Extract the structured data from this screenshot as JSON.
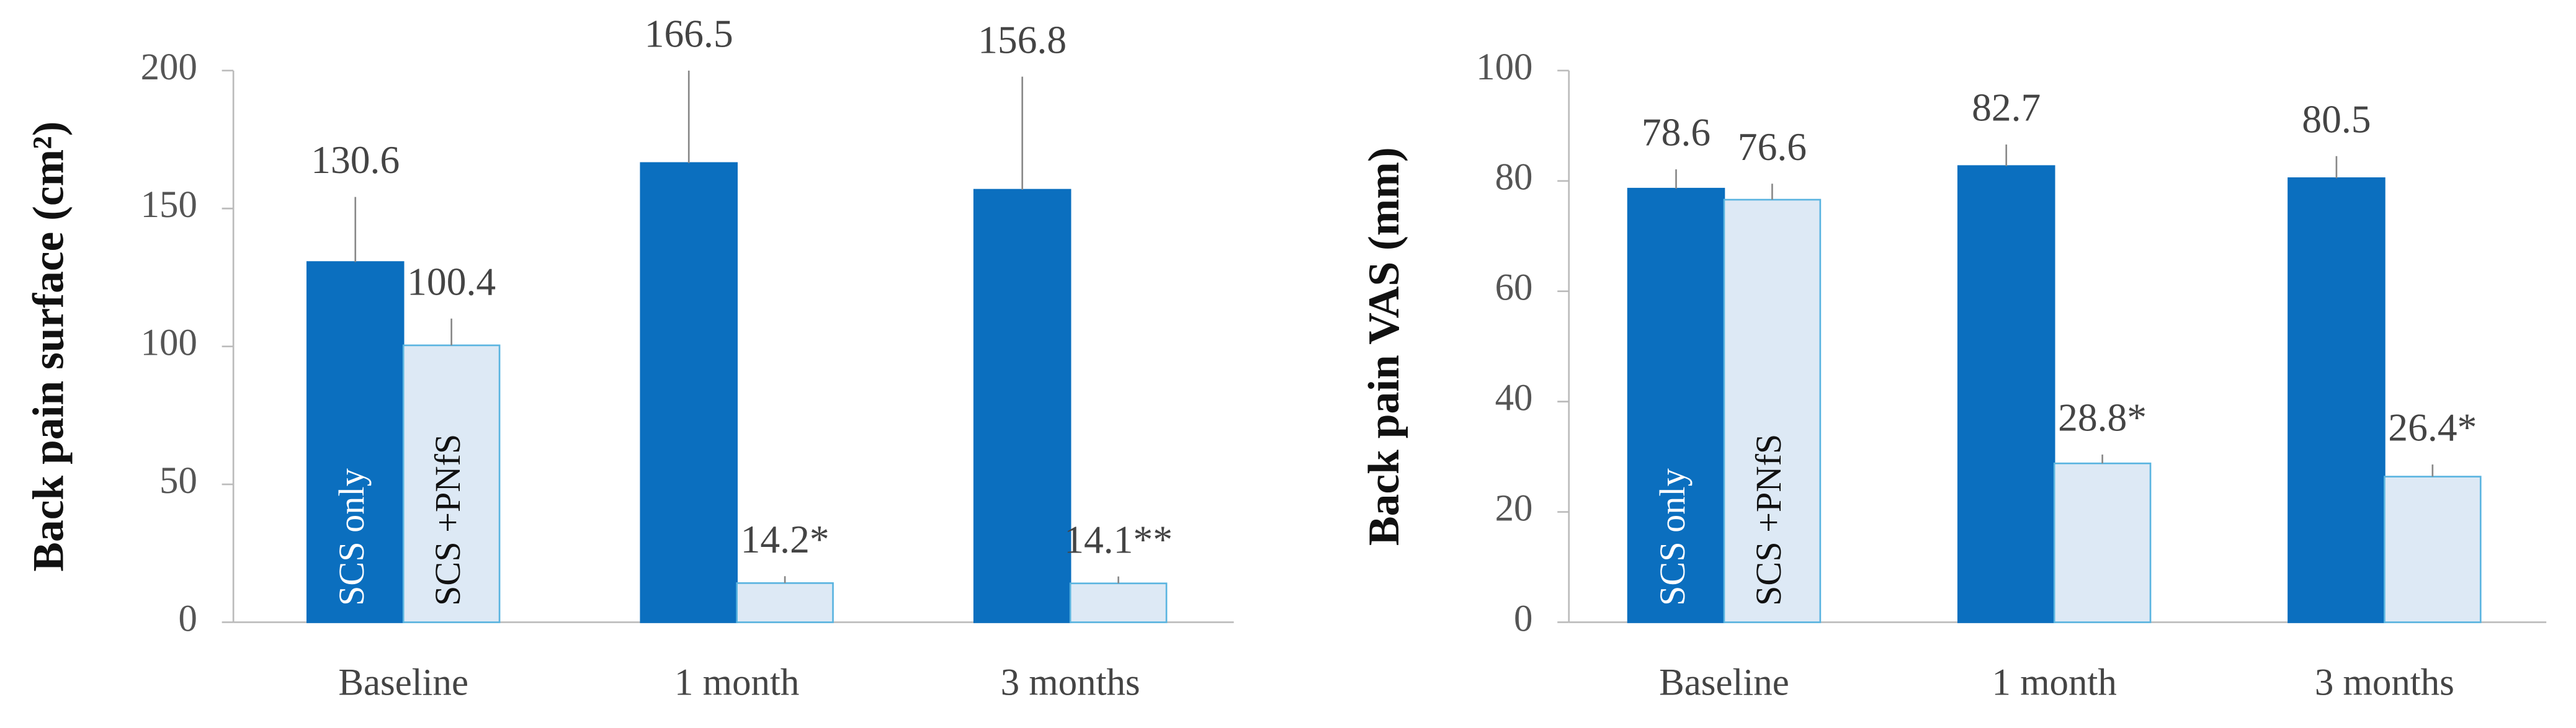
{
  "chart_data": [
    {
      "type": "bar",
      "y_label": "Back pain surface (cm²)",
      "categories": [
        "Baseline",
        "1 month",
        "3 months"
      ],
      "series": [
        {
          "name": "SCS only",
          "color": "#0b6fbf",
          "values": [
            130.6,
            166.5,
            156.8
          ],
          "errors": [
            23.6,
            33.5,
            41
          ]
        },
        {
          "name": "SCS +PNfS",
          "color": "#dde9f5",
          "values": [
            100.4,
            14.2,
            14.1
          ],
          "value_labels": [
            "100.4",
            "14.2*",
            "14.1**"
          ],
          "errors": [
            9.7,
            2.5,
            2.5
          ]
        }
      ],
      "ylim": [
        0,
        200
      ],
      "yticks": [
        0,
        50,
        100,
        150,
        200
      ]
    },
    {
      "type": "bar",
      "y_label": "Back pain VAS (mm)",
      "categories": [
        "Baseline",
        "1 month",
        "3 months"
      ],
      "series": [
        {
          "name": "SCS only",
          "color": "#0b6fbf",
          "values": [
            78.6,
            82.7,
            80.5
          ],
          "errors": [
            3.5,
            3.9,
            4
          ]
        },
        {
          "name": "SCS +PNfS",
          "color": "#dde9f5",
          "values": [
            76.6,
            28.8,
            26.4
          ],
          "value_labels": [
            "76.6",
            "28.8*",
            "26.4*"
          ],
          "errors": [
            2.9,
            1.6,
            2.2
          ]
        }
      ],
      "ylim": [
        0,
        100
      ],
      "yticks": [
        0,
        20,
        40,
        60,
        80,
        100
      ]
    }
  ]
}
